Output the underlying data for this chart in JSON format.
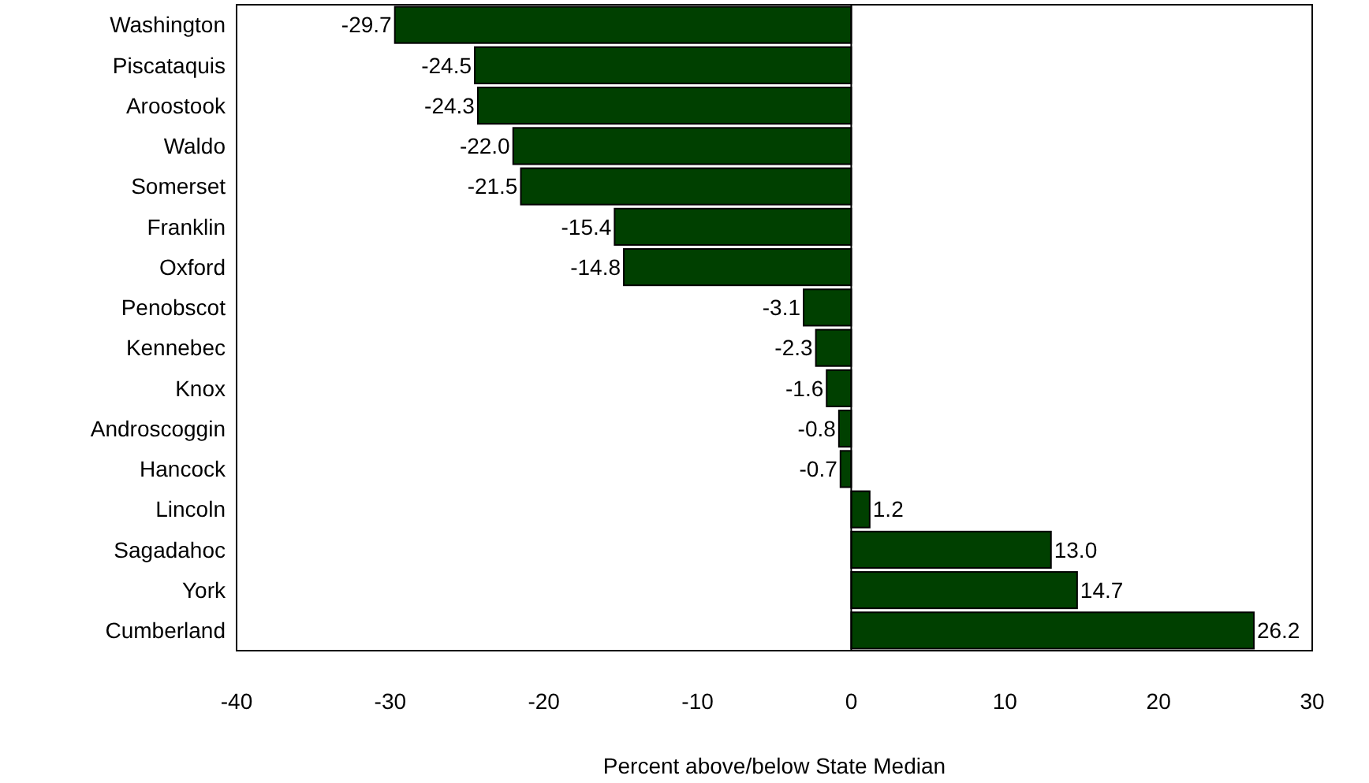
{
  "chart_data": {
    "type": "bar",
    "orientation": "horizontal",
    "xlabel": "Percent above/below State Median",
    "categories": [
      "Washington",
      "Piscataquis",
      "Aroostook",
      "Waldo",
      "Somerset",
      "Franklin",
      "Oxford",
      "Penobscot",
      "Kennebec",
      "Knox",
      "Androscoggin",
      "Hancock",
      "Lincoln",
      "Sagadahoc",
      "York",
      "Cumberland"
    ],
    "values": [
      -29.7,
      -24.5,
      -24.3,
      -22.0,
      -21.5,
      -15.4,
      -14.8,
      -3.1,
      -2.3,
      -1.6,
      -0.8,
      -0.7,
      1.2,
      13.0,
      14.7,
      26.2
    ],
    "value_labels": [
      "-29.7",
      "-24.5",
      "-24.3",
      "-22.0",
      "-21.5",
      "-15.4",
      "-14.8",
      "-3.1",
      "-2.3",
      "-1.6",
      "-0.8",
      "-0.7",
      "1.2",
      "13.0",
      "14.7",
      "26.2"
    ],
    "color": "#004000",
    "xlim": [
      -40,
      30
    ],
    "xticks": [
      -40,
      -30,
      -20,
      -10,
      0,
      10,
      20,
      30
    ]
  }
}
